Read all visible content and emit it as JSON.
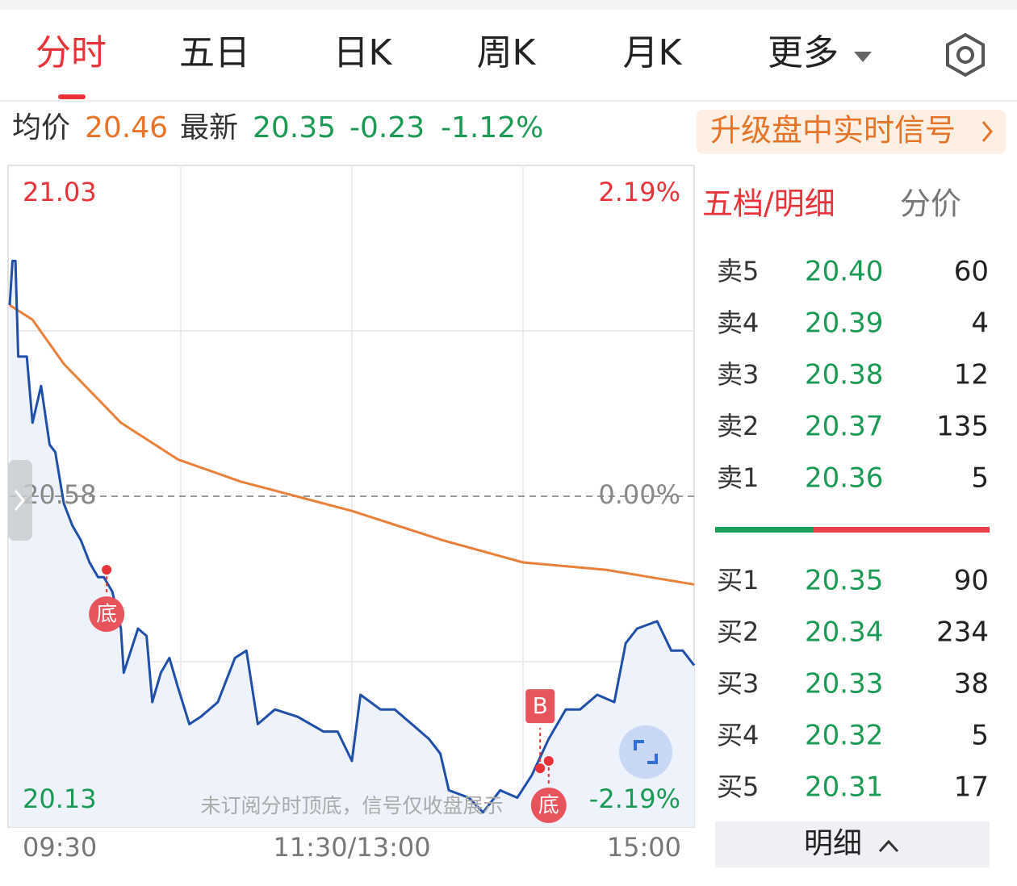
{
  "tabs": [
    "分时",
    "五日",
    "日K",
    "周K",
    "月K",
    "更多"
  ],
  "summary": {
    "avg_label": "均价",
    "avg": "20.46",
    "latest_label": "最新",
    "latest": "20.35",
    "change": "-0.23",
    "change_pct": "-1.12%"
  },
  "promo": "升级盘中实时信号",
  "chart_data": {
    "type": "line",
    "xlim": [
      0,
      240
    ],
    "xticks": [
      {
        "value": 0,
        "label": "09:30"
      },
      {
        "value": 120,
        "label": "11:30/13:00"
      },
      {
        "value": 240,
        "label": "15:00"
      }
    ],
    "ylim": [
      20.13,
      21.03
    ],
    "yticks": [
      21.03,
      20.58,
      20.13
    ],
    "y2lim": [
      -2.19,
      2.19
    ],
    "y2ticks": [
      {
        "value": 2.19,
        "label": "2.19%"
      },
      {
        "value": 0,
        "label": "0.00%"
      },
      {
        "value": -2.19,
        "label": "-2.19%"
      }
    ],
    "series": [
      {
        "color": "#1f4fa8",
        "x": [
          0,
          1,
          2,
          3,
          6,
          8,
          11,
          14,
          16,
          19,
          22,
          25,
          28,
          31,
          33,
          36,
          39,
          40,
          45,
          48,
          50,
          53,
          56,
          59,
          63,
          67,
          73,
          79,
          83,
          87,
          93,
          101,
          110,
          115,
          120,
          123,
          130,
          135,
          141,
          147,
          151,
          154,
          161,
          166,
          172,
          178,
          183,
          189,
          195,
          200,
          206,
          212,
          216,
          220,
          227,
          232,
          236,
          240
        ],
        "values": [
          20.84,
          20.9,
          20.9,
          20.77,
          20.77,
          20.68,
          20.73,
          20.65,
          20.64,
          20.57,
          20.54,
          20.52,
          20.49,
          20.47,
          20.47,
          20.45,
          20.4,
          20.34,
          20.4,
          20.39,
          20.3,
          20.34,
          20.36,
          20.32,
          20.27,
          20.28,
          20.3,
          20.36,
          20.37,
          20.27,
          20.29,
          20.28,
          20.26,
          20.26,
          20.22,
          20.31,
          20.29,
          20.29,
          20.27,
          20.25,
          20.23,
          20.18,
          20.17,
          20.15,
          20.18,
          20.17,
          20.2,
          20.25,
          20.29,
          20.29,
          20.31,
          20.3,
          20.38,
          20.4,
          20.41,
          20.37,
          20.37,
          20.35
        ]
      },
      {
        "color": "#e8803a",
        "x": [
          0,
          8,
          19,
          39,
          59,
          81,
          120,
          152,
          180,
          209,
          240
        ],
        "values": [
          20.84,
          20.82,
          20.76,
          20.68,
          20.63,
          20.6,
          20.56,
          20.52,
          20.49,
          20.48,
          20.46
        ]
      }
    ],
    "annotations": [
      {
        "label": "底",
        "x": 34,
        "y": 20.48
      },
      {
        "label": "B",
        "x": 186,
        "y": 20.21
      },
      {
        "label": "底",
        "x": 189,
        "y": 20.22
      }
    ],
    "note": "未订阅分时顶底，信号仅收盘展示"
  },
  "order_book": {
    "tabs": [
      "五档/明细",
      "分价"
    ],
    "sell": [
      {
        "label": "卖5",
        "price": "20.40",
        "volume": 60
      },
      {
        "label": "卖4",
        "price": "20.39",
        "volume": 4
      },
      {
        "label": "卖3",
        "price": "20.38",
        "volume": 12
      },
      {
        "label": "卖2",
        "price": "20.37",
        "volume": 135
      },
      {
        "label": "卖1",
        "price": "20.36",
        "volume": 5
      }
    ],
    "buy": [
      {
        "label": "买1",
        "price": "20.35",
        "volume": 90
      },
      {
        "label": "买2",
        "price": "20.34",
        "volume": 234
      },
      {
        "label": "买3",
        "price": "20.33",
        "volume": 38
      },
      {
        "label": "买4",
        "price": "20.32",
        "volume": 5
      },
      {
        "label": "买5",
        "price": "20.31",
        "volume": 17
      }
    ],
    "detail": "明细"
  }
}
